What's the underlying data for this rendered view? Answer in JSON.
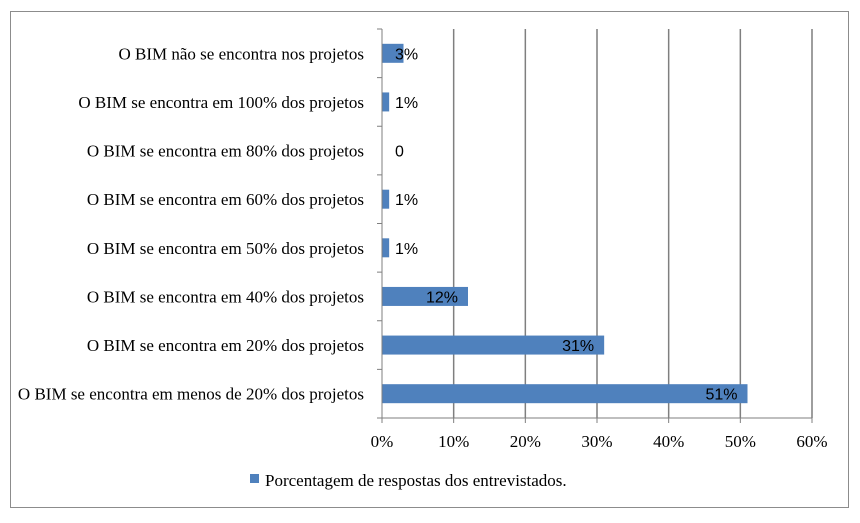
{
  "chart_data": {
    "type": "bar",
    "orientation": "horizontal",
    "categories": [
      "O BIM não se encontra nos projetos",
      "O BIM se encontra em 100% dos projetos",
      "O BIM se encontra em 80% dos projetos",
      "O BIM se encontra em 60% dos projetos",
      "O BIM se encontra em 50% dos projetos",
      "O BIM se encontra em 40% dos projetos",
      "O BIM se encontra em 20% dos projetos",
      "O BIM se encontra em menos de 20% dos projetos"
    ],
    "series": [
      {
        "name": "Porcentagem de respostas dos entrevistados.",
        "values": [
          3,
          1,
          0,
          1,
          1,
          12,
          31,
          51
        ],
        "labels": [
          "3%",
          "1%",
          "0",
          "1%",
          "1%",
          "12%",
          "31%",
          "51%"
        ]
      }
    ],
    "xlim": [
      0,
      60
    ],
    "xticks": [
      "0%",
      "10%",
      "20%",
      "30%",
      "40%",
      "50%",
      "60%"
    ],
    "title": "",
    "xlabel": "",
    "ylabel": "",
    "grid": "vertical",
    "legend": "bottom",
    "colors": {
      "bar": "#4f81bd",
      "grid": "#7f7f7f",
      "axis": "#7f7f7f"
    }
  }
}
